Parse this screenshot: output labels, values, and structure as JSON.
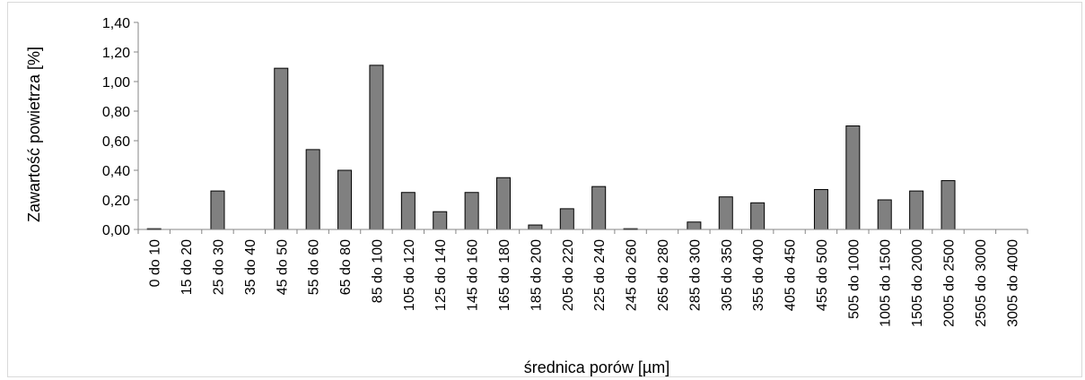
{
  "chart_data": {
    "type": "bar",
    "title": "",
    "xlabel": "średnica porów [µm]",
    "ylabel": "Zawartość powietrza [%]",
    "ylim": [
      0,
      1.4
    ],
    "yticks": [
      "0,00",
      "0,20",
      "0,40",
      "0,60",
      "0,80",
      "1,00",
      "1,20",
      "1,40"
    ],
    "grid": false,
    "bar_color": "#808080",
    "categories": [
      "0 do 10",
      "15 do 20",
      "25 do 30",
      "35 do 40",
      "45 do 50",
      "55 do 60",
      "65 do 80",
      "85 do 100",
      "105 do 120",
      "125 do 140",
      "145 do 160",
      "165 do 180",
      "185 do 200",
      "205 do 220",
      "225 do 240",
      "245 do 260",
      "265 do 280",
      "285 do 300",
      "305 do 350",
      "355 do 400",
      "405 do 450",
      "455 do 500",
      "505 do 1000",
      "1005 do 1500",
      "1505 do 2000",
      "2005 do 2500",
      "2505 do 3000",
      "3005 do 4000"
    ],
    "values": [
      0.005,
      0.0,
      0.26,
      0.0,
      1.09,
      0.54,
      0.4,
      1.11,
      0.25,
      0.12,
      0.25,
      0.35,
      0.03,
      0.14,
      0.29,
      0.005,
      0.0,
      0.05,
      0.22,
      0.18,
      0.0,
      0.27,
      0.7,
      0.2,
      0.26,
      0.33,
      0.0,
      0.0
    ]
  }
}
